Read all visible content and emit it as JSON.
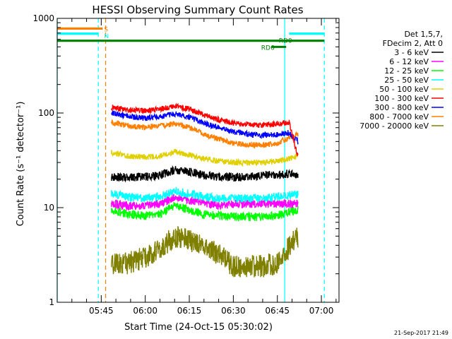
{
  "chart_data": {
    "type": "line",
    "title": "HESSI Observing Summary Count Rates",
    "xlabel": "Start Time (24-Oct-15 05:30:02)",
    "ylabel": "Count Rate (s⁻¹ detector⁻¹)",
    "y_scale": "log",
    "ylim": [
      1,
      1000
    ],
    "y_ticks": [
      1,
      10,
      100,
      1000
    ],
    "y_tick_labels": [
      "1",
      "10",
      "100",
      "1000"
    ],
    "x_unit": "minutes after 05:30:02",
    "xlim": [
      0,
      96
    ],
    "x_ticks": [
      15,
      30,
      45,
      60,
      75,
      90
    ],
    "x_tick_labels": [
      "05:45",
      "06:00",
      "06:15",
      "06:30",
      "06:45",
      "07:00"
    ],
    "legend_header": [
      "Det 1,5,7,",
      "FDecim 2, Att 0"
    ],
    "legend_position": "right",
    "grid": false,
    "time_range_minutes": [
      18.5,
      82
    ],
    "series": [
      {
        "name": "3 - 6 keV",
        "color": "#000000",
        "x": [
          18.5,
          24,
          30,
          35,
          40,
          45,
          50,
          55,
          60,
          65,
          70,
          75,
          79,
          82
        ],
        "values": [
          21,
          21,
          21,
          22,
          25,
          24,
          22,
          21,
          21,
          21,
          22,
          22,
          23,
          22
        ]
      },
      {
        "name": "6 - 12 keV",
        "color": "#ff00ff",
        "x": [
          18.5,
          24,
          30,
          35,
          40,
          45,
          50,
          55,
          60,
          65,
          70,
          75,
          79,
          82
        ],
        "values": [
          11,
          10.5,
          10.5,
          11,
          13,
          12,
          11,
          10.5,
          11,
          11,
          11,
          11,
          11,
          11
        ]
      },
      {
        "name": "12 - 25 keV",
        "color": "#00ff00",
        "x": [
          18.5,
          24,
          30,
          35,
          40,
          45,
          50,
          55,
          60,
          65,
          70,
          75,
          79,
          82
        ],
        "values": [
          9.5,
          8.5,
          8.2,
          8.5,
          10.5,
          9.5,
          8.5,
          8.2,
          8.0,
          8.0,
          8.0,
          8.2,
          9.0,
          9.5
        ]
      },
      {
        "name": "25 - 50 keV",
        "color": "#00ffff",
        "x": [
          18.5,
          24,
          30,
          35,
          40,
          45,
          50,
          55,
          60,
          65,
          70,
          75,
          79,
          82
        ],
        "values": [
          14,
          13,
          12.5,
          13,
          15,
          14,
          13,
          12.5,
          12.5,
          12.5,
          12.5,
          13,
          13.5,
          14
        ]
      },
      {
        "name": "50 - 100 keV",
        "color": "#e0d000",
        "x": [
          18.5,
          24,
          30,
          35,
          40,
          45,
          50,
          55,
          60,
          65,
          70,
          75,
          79,
          82
        ],
        "values": [
          38,
          35,
          34,
          35,
          39,
          36,
          33,
          31,
          30,
          30,
          30,
          31,
          33,
          35
        ]
      },
      {
        "name": "100 - 300 keV",
        "color": "#ff0000",
        "x": [
          18.5,
          24,
          30,
          35,
          40,
          45,
          50,
          55,
          60,
          65,
          70,
          75,
          79,
          82
        ],
        "values": [
          115,
          108,
          105,
          110,
          118,
          110,
          95,
          85,
          78,
          75,
          75,
          77,
          80,
          34
        ]
      },
      {
        "name": "300 - 800 keV",
        "color": "#0000ff",
        "x": [
          18.5,
          24,
          30,
          35,
          40,
          45,
          50,
          55,
          60,
          65,
          70,
          75,
          79,
          82
        ],
        "values": [
          100,
          92,
          88,
          92,
          98,
          90,
          78,
          70,
          63,
          60,
          58,
          59,
          62,
          50
        ]
      },
      {
        "name": "800 - 7000 keV",
        "color": "#ff8000",
        "x": [
          18.5,
          24,
          30,
          35,
          40,
          45,
          50,
          55,
          60,
          65,
          70,
          75,
          79,
          82
        ],
        "values": [
          80,
          73,
          70,
          73,
          77,
          70,
          60,
          53,
          48,
          46,
          46,
          48,
          55,
          60
        ]
      },
      {
        "name": "7000 - 20000 keV",
        "color": "#808000",
        "x": [
          18.5,
          24,
          30,
          35,
          40,
          45,
          50,
          55,
          60,
          65,
          70,
          75,
          79,
          82
        ],
        "values": [
          2.5,
          2.6,
          3.0,
          3.7,
          5.0,
          4.5,
          4.0,
          3.2,
          2.4,
          2.4,
          2.4,
          2.6,
          3.8,
          5.0
        ]
      }
    ],
    "annotations": [
      {
        "text": "S",
        "color": "#ff8000",
        "x": 15.5,
        "y": 780,
        "line": [
          0,
          15.5
        ]
      },
      {
        "text": "N",
        "color": "#00ffff",
        "x": 15.5,
        "y": 660,
        "line": [
          0,
          14
        ]
      },
      {
        "text": "RD0",
        "color": "#008000",
        "x": 75,
        "y": 590
      },
      {
        "text": "RD6",
        "color": "#008000",
        "x": 69,
        "y": 500,
        "line": [
          73,
          78
        ]
      }
    ],
    "horizontal_bars": [
      {
        "color": "#ff8000",
        "y": 780,
        "x": [
          0,
          15.5
        ]
      },
      {
        "color": "#00ffff",
        "y": 690,
        "x": [
          0,
          14
        ]
      },
      {
        "color": "#00ffff",
        "y": 690,
        "x": [
          79,
          91
        ]
      },
      {
        "color": "#008000",
        "y": 580,
        "x": [
          0,
          91
        ]
      }
    ],
    "vertical_lines": [
      {
        "color": "#00ffff",
        "x": 0,
        "style": "solid"
      },
      {
        "color": "#00ffff",
        "x": 14,
        "style": "dashed"
      },
      {
        "color": "#ff8000",
        "x": 16.5,
        "style": "dashed"
      },
      {
        "color": "#00ffff",
        "x": 77.5,
        "style": "solid"
      },
      {
        "color": "#00ffff",
        "x": 91,
        "style": "dashed"
      }
    ],
    "footer": "21-Sep-2017 21:49"
  }
}
